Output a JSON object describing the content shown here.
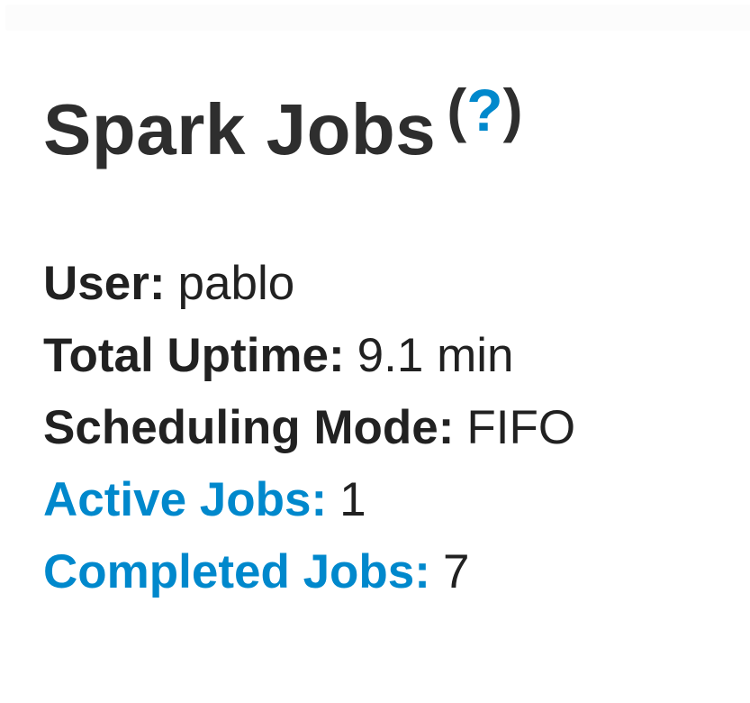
{
  "header": {
    "title": "Spark Jobs",
    "help": {
      "open_paren": "(",
      "question_mark": "?",
      "close_paren": ")"
    }
  },
  "summary": {
    "user": {
      "label": "User:",
      "value": "pablo"
    },
    "total_uptime": {
      "label": "Total Uptime:",
      "value": "9.1 min"
    },
    "scheduling_mode": {
      "label": "Scheduling Mode:",
      "value": "FIFO"
    },
    "active_jobs": {
      "label": "Active Jobs:",
      "value": "1"
    },
    "completed_jobs": {
      "label": "Completed Jobs:",
      "value": "7"
    }
  },
  "colors": {
    "link_blue": "#0088cc",
    "heading_text": "#2e2e2e",
    "body_text": "#212121",
    "top_band": "#fcfcfc"
  }
}
